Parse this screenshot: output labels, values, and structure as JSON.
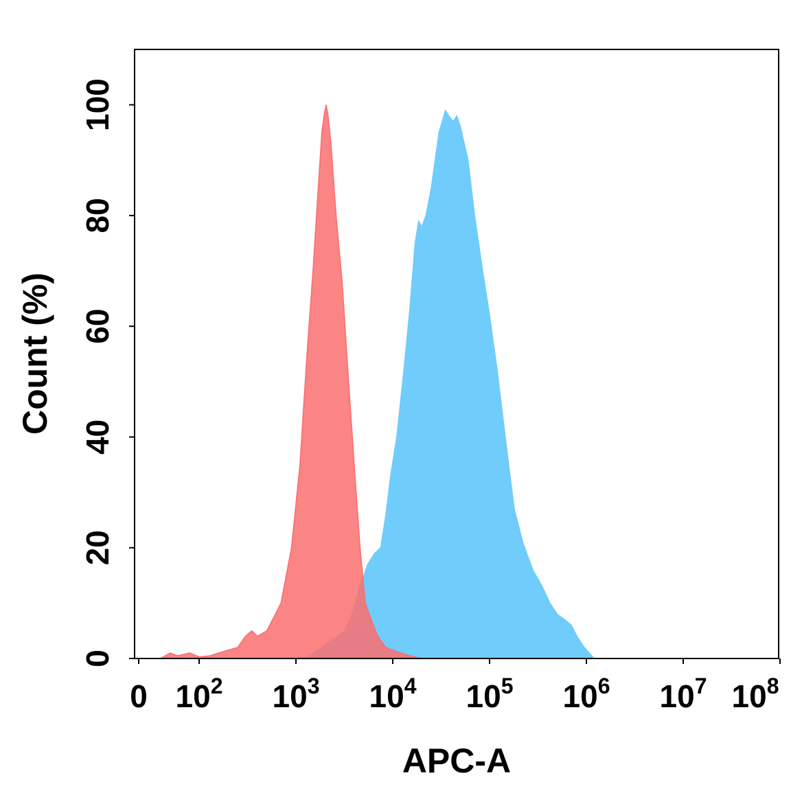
{
  "chart_data": {
    "type": "area",
    "title": "",
    "xlabel": "APC-A",
    "ylabel": "Count (%)",
    "x_scale": "log",
    "xlim_label": [
      0,
      100000000
    ],
    "ylim": [
      0,
      110
    ],
    "grid": false,
    "legend": "none",
    "x_ticks": [
      {
        "base": "0",
        "exp": ""
      },
      {
        "base": "10",
        "exp": "2"
      },
      {
        "base": "10",
        "exp": "3"
      },
      {
        "base": "10",
        "exp": "4"
      },
      {
        "base": "10",
        "exp": "5"
      },
      {
        "base": "10",
        "exp": "6"
      },
      {
        "base": "10",
        "exp": "7"
      },
      {
        "base": "10",
        "exp": "8"
      }
    ],
    "y_ticks": [
      "0",
      "20",
      "40",
      "60",
      "80",
      "100"
    ],
    "series": [
      {
        "color": "#fa6e6e",
        "points": [
          [
            40,
            0
          ],
          [
            50,
            1
          ],
          [
            60,
            0.5
          ],
          [
            80,
            1
          ],
          [
            100,
            0.3
          ],
          [
            130,
            0.5
          ],
          [
            160,
            1
          ],
          [
            200,
            1.5
          ],
          [
            250,
            2
          ],
          [
            300,
            4
          ],
          [
            350,
            5
          ],
          [
            400,
            4
          ],
          [
            500,
            5
          ],
          [
            700,
            10
          ],
          [
            900,
            20
          ],
          [
            1100,
            35
          ],
          [
            1300,
            55
          ],
          [
            1500,
            70
          ],
          [
            1700,
            85
          ],
          [
            1850,
            95
          ],
          [
            1950,
            98
          ],
          [
            2050,
            100
          ],
          [
            2150,
            98
          ],
          [
            2300,
            93
          ],
          [
            2600,
            80
          ],
          [
            3000,
            68
          ],
          [
            3500,
            50
          ],
          [
            4000,
            35
          ],
          [
            4600,
            20
          ],
          [
            5200,
            10
          ],
          [
            6000,
            7
          ],
          [
            7000,
            4
          ],
          [
            8500,
            2
          ],
          [
            10000,
            1.5
          ],
          [
            12000,
            1
          ],
          [
            15000,
            0.5
          ],
          [
            20000,
            0
          ]
        ]
      },
      {
        "color": "#70ccfa",
        "points": [
          [
            1200,
            0
          ],
          [
            1700,
            1.5
          ],
          [
            2200,
            3
          ],
          [
            2700,
            4
          ],
          [
            3200,
            5
          ],
          [
            3800,
            8
          ],
          [
            4600,
            13
          ],
          [
            5500,
            17
          ],
          [
            6500,
            19
          ],
          [
            7500,
            20
          ],
          [
            8500,
            26
          ],
          [
            9500,
            33
          ],
          [
            11000,
            40
          ],
          [
            13000,
            52
          ],
          [
            15000,
            63
          ],
          [
            17000,
            75
          ],
          [
            18500,
            79
          ],
          [
            20000,
            78
          ],
          [
            22000,
            80
          ],
          [
            25000,
            85
          ],
          [
            30000,
            95
          ],
          [
            35000,
            99
          ],
          [
            38000,
            98
          ],
          [
            42000,
            97
          ],
          [
            46000,
            98
          ],
          [
            50000,
            96
          ],
          [
            60000,
            90
          ],
          [
            70000,
            80
          ],
          [
            85000,
            70
          ],
          [
            100000,
            62
          ],
          [
            120000,
            52
          ],
          [
            150000,
            38
          ],
          [
            180000,
            27
          ],
          [
            220000,
            21
          ],
          [
            280000,
            16
          ],
          [
            350000,
            13
          ],
          [
            420000,
            10
          ],
          [
            500000,
            8
          ],
          [
            600000,
            7
          ],
          [
            700000,
            6
          ],
          [
            800000,
            4
          ],
          [
            950000,
            2
          ],
          [
            1200000,
            0
          ]
        ]
      }
    ]
  }
}
